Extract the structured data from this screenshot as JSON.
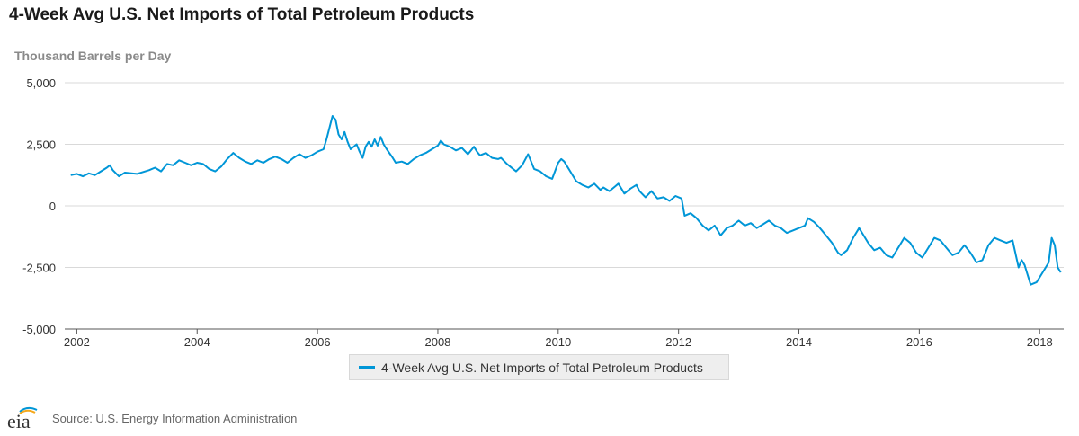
{
  "title": "4-Week Avg U.S. Net Imports of Total Petroleum Products",
  "source": "Source: U.S. Energy Information Administration",
  "logo_text": "eia",
  "colors": {
    "series": "#0096d7",
    "grid": "#d9d9d9",
    "axis": "#555555"
  },
  "chart_data": {
    "type": "line",
    "title": "4-Week Avg U.S. Net Imports of Total Petroleum Products",
    "ylabel": "Thousand Barrels per Day",
    "xlabel": "",
    "ylim": [
      -5000,
      5000
    ],
    "xlim": [
      2001.8,
      2018.4
    ],
    "yticks": [
      5000,
      2500,
      0,
      -2500,
      -5000
    ],
    "ytick_labels": [
      "5,000",
      "2,500",
      "0",
      "-2,500",
      "-5,000"
    ],
    "xticks": [
      2002,
      2004,
      2006,
      2008,
      2010,
      2012,
      2014,
      2016,
      2018
    ],
    "xtick_labels": [
      "2002",
      "2004",
      "2006",
      "2008",
      "2010",
      "2012",
      "2014",
      "2016",
      "2018"
    ],
    "grid": "horizontal",
    "legend": "bottom-center",
    "series": [
      {
        "name": "4-Week Avg U.S. Net Imports of Total Petroleum Products",
        "points": [
          [
            2001.9,
            1250
          ],
          [
            2002.0,
            1300
          ],
          [
            2002.1,
            1200
          ],
          [
            2002.2,
            1320
          ],
          [
            2002.3,
            1250
          ],
          [
            2002.4,
            1400
          ],
          [
            2002.5,
            1550
          ],
          [
            2002.55,
            1650
          ],
          [
            2002.6,
            1450
          ],
          [
            2002.7,
            1200
          ],
          [
            2002.8,
            1350
          ],
          [
            2003.0,
            1300
          ],
          [
            2003.2,
            1450
          ],
          [
            2003.3,
            1550
          ],
          [
            2003.4,
            1400
          ],
          [
            2003.5,
            1700
          ],
          [
            2003.6,
            1650
          ],
          [
            2003.7,
            1850
          ],
          [
            2003.8,
            1750
          ],
          [
            2003.9,
            1650
          ],
          [
            2004.0,
            1750
          ],
          [
            2004.1,
            1700
          ],
          [
            2004.2,
            1500
          ],
          [
            2004.3,
            1400
          ],
          [
            2004.4,
            1600
          ],
          [
            2004.5,
            1900
          ],
          [
            2004.6,
            2150
          ],
          [
            2004.7,
            1950
          ],
          [
            2004.8,
            1800
          ],
          [
            2004.9,
            1700
          ],
          [
            2005.0,
            1850
          ],
          [
            2005.1,
            1750
          ],
          [
            2005.2,
            1900
          ],
          [
            2005.3,
            2000
          ],
          [
            2005.4,
            1900
          ],
          [
            2005.5,
            1750
          ],
          [
            2005.6,
            1950
          ],
          [
            2005.7,
            2100
          ],
          [
            2005.8,
            1950
          ],
          [
            2005.9,
            2050
          ],
          [
            2006.0,
            2200
          ],
          [
            2006.1,
            2300
          ],
          [
            2006.15,
            2700
          ],
          [
            2006.25,
            3650
          ],
          [
            2006.3,
            3500
          ],
          [
            2006.35,
            2900
          ],
          [
            2006.4,
            2700
          ],
          [
            2006.45,
            3000
          ],
          [
            2006.5,
            2600
          ],
          [
            2006.55,
            2300
          ],
          [
            2006.65,
            2500
          ],
          [
            2006.7,
            2200
          ],
          [
            2006.75,
            1950
          ],
          [
            2006.8,
            2400
          ],
          [
            2006.85,
            2600
          ],
          [
            2006.9,
            2400
          ],
          [
            2006.95,
            2700
          ],
          [
            2007.0,
            2450
          ],
          [
            2007.05,
            2800
          ],
          [
            2007.1,
            2500
          ],
          [
            2007.15,
            2300
          ],
          [
            2007.25,
            1950
          ],
          [
            2007.3,
            1750
          ],
          [
            2007.4,
            1800
          ],
          [
            2007.5,
            1700
          ],
          [
            2007.6,
            1900
          ],
          [
            2007.7,
            2050
          ],
          [
            2007.8,
            2150
          ],
          [
            2007.9,
            2300
          ],
          [
            2008.0,
            2450
          ],
          [
            2008.05,
            2650
          ],
          [
            2008.1,
            2500
          ],
          [
            2008.2,
            2400
          ],
          [
            2008.3,
            2250
          ],
          [
            2008.4,
            2350
          ],
          [
            2008.5,
            2100
          ],
          [
            2008.6,
            2400
          ],
          [
            2008.65,
            2200
          ],
          [
            2008.7,
            2050
          ],
          [
            2008.8,
            2150
          ],
          [
            2008.9,
            1950
          ],
          [
            2009.0,
            1900
          ],
          [
            2009.05,
            1950
          ],
          [
            2009.15,
            1700
          ],
          [
            2009.2,
            1600
          ],
          [
            2009.3,
            1400
          ],
          [
            2009.4,
            1650
          ],
          [
            2009.5,
            2100
          ],
          [
            2009.55,
            1800
          ],
          [
            2009.6,
            1500
          ],
          [
            2009.7,
            1400
          ],
          [
            2009.8,
            1200
          ],
          [
            2009.9,
            1100
          ],
          [
            2010.0,
            1750
          ],
          [
            2010.05,
            1900
          ],
          [
            2010.1,
            1800
          ],
          [
            2010.2,
            1400
          ],
          [
            2010.3,
            1000
          ],
          [
            2010.4,
            850
          ],
          [
            2010.5,
            750
          ],
          [
            2010.6,
            900
          ],
          [
            2010.7,
            650
          ],
          [
            2010.75,
            750
          ],
          [
            2010.85,
            600
          ],
          [
            2010.95,
            800
          ],
          [
            2011.0,
            900
          ],
          [
            2011.05,
            700
          ],
          [
            2011.1,
            500
          ],
          [
            2011.2,
            700
          ],
          [
            2011.3,
            850
          ],
          [
            2011.35,
            600
          ],
          [
            2011.45,
            350
          ],
          [
            2011.55,
            600
          ],
          [
            2011.65,
            300
          ],
          [
            2011.75,
            350
          ],
          [
            2011.85,
            200
          ],
          [
            2011.95,
            400
          ],
          [
            2012.05,
            300
          ],
          [
            2012.1,
            -400
          ],
          [
            2012.2,
            -300
          ],
          [
            2012.3,
            -500
          ],
          [
            2012.4,
            -800
          ],
          [
            2012.5,
            -1000
          ],
          [
            2012.6,
            -800
          ],
          [
            2012.7,
            -1200
          ],
          [
            2012.8,
            -900
          ],
          [
            2012.9,
            -800
          ],
          [
            2013.0,
            -600
          ],
          [
            2013.1,
            -800
          ],
          [
            2013.2,
            -700
          ],
          [
            2013.3,
            -900
          ],
          [
            2013.4,
            -750
          ],
          [
            2013.5,
            -600
          ],
          [
            2013.6,
            -800
          ],
          [
            2013.7,
            -900
          ],
          [
            2013.8,
            -1100
          ],
          [
            2013.9,
            -1000
          ],
          [
            2014.0,
            -900
          ],
          [
            2014.1,
            -800
          ],
          [
            2014.15,
            -500
          ],
          [
            2014.25,
            -650
          ],
          [
            2014.35,
            -900
          ],
          [
            2014.45,
            -1200
          ],
          [
            2014.55,
            -1500
          ],
          [
            2014.65,
            -1900
          ],
          [
            2014.7,
            -2000
          ],
          [
            2014.8,
            -1800
          ],
          [
            2014.9,
            -1300
          ],
          [
            2015.0,
            -900
          ],
          [
            2015.05,
            -1100
          ],
          [
            2015.15,
            -1500
          ],
          [
            2015.25,
            -1800
          ],
          [
            2015.35,
            -1700
          ],
          [
            2015.45,
            -2000
          ],
          [
            2015.55,
            -2100
          ],
          [
            2015.65,
            -1700
          ],
          [
            2015.75,
            -1300
          ],
          [
            2015.85,
            -1500
          ],
          [
            2015.95,
            -1900
          ],
          [
            2016.05,
            -2100
          ],
          [
            2016.15,
            -1700
          ],
          [
            2016.25,
            -1300
          ],
          [
            2016.35,
            -1400
          ],
          [
            2016.45,
            -1700
          ],
          [
            2016.55,
            -2000
          ],
          [
            2016.65,
            -1900
          ],
          [
            2016.75,
            -1600
          ],
          [
            2016.85,
            -1900
          ],
          [
            2016.95,
            -2300
          ],
          [
            2017.05,
            -2200
          ],
          [
            2017.15,
            -1600
          ],
          [
            2017.25,
            -1300
          ],
          [
            2017.35,
            -1400
          ],
          [
            2017.45,
            -1500
          ],
          [
            2017.55,
            -1400
          ],
          [
            2017.65,
            -2500
          ],
          [
            2017.7,
            -2200
          ],
          [
            2017.75,
            -2400
          ],
          [
            2017.85,
            -3200
          ],
          [
            2017.95,
            -3100
          ],
          [
            2018.05,
            -2700
          ],
          [
            2018.15,
            -2300
          ],
          [
            2018.2,
            -1300
          ],
          [
            2018.25,
            -1600
          ],
          [
            2018.3,
            -2500
          ],
          [
            2018.35,
            -2700
          ]
        ]
      }
    ]
  }
}
